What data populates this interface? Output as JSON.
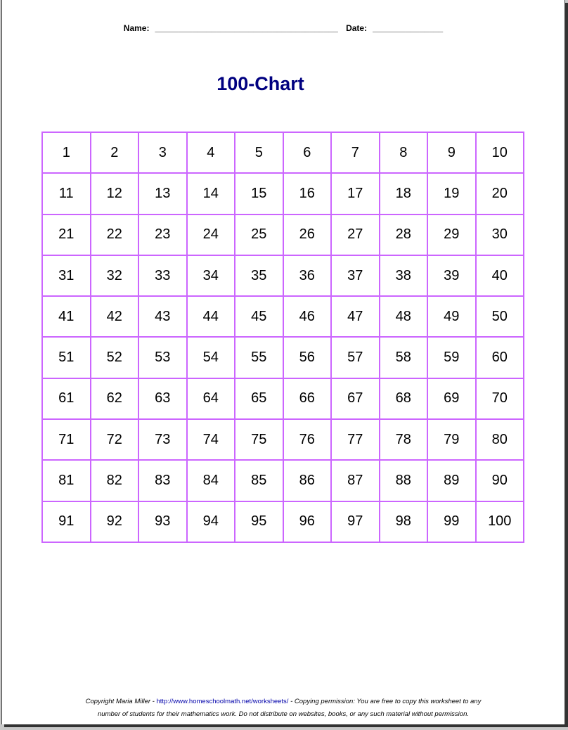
{
  "header": {
    "name_label": "Name:",
    "name_blank": "_______________________________________",
    "date_label": "Date:",
    "date_blank": "_______________"
  },
  "title": "100-Chart",
  "grid_border_color": "#cc66ff",
  "title_color": "#000080",
  "cells": [
    1,
    2,
    3,
    4,
    5,
    6,
    7,
    8,
    9,
    10,
    11,
    12,
    13,
    14,
    15,
    16,
    17,
    18,
    19,
    20,
    21,
    22,
    23,
    24,
    25,
    26,
    27,
    28,
    29,
    30,
    31,
    32,
    33,
    34,
    35,
    36,
    37,
    38,
    39,
    40,
    41,
    42,
    43,
    44,
    45,
    46,
    47,
    48,
    49,
    50,
    51,
    52,
    53,
    54,
    55,
    56,
    57,
    58,
    59,
    60,
    61,
    62,
    63,
    64,
    65,
    66,
    67,
    68,
    69,
    70,
    71,
    72,
    73,
    74,
    75,
    76,
    77,
    78,
    79,
    80,
    81,
    82,
    83,
    84,
    85,
    86,
    87,
    88,
    89,
    90,
    91,
    92,
    93,
    94,
    95,
    96,
    97,
    98,
    99,
    100
  ],
  "footer": {
    "copyright": "Copyright Maria Miller - ",
    "link": "http://www.homeschoolmath.net/worksheets/",
    "line1_rest": " - Copying permission: You are free to copy this worksheet to any",
    "line2": "number of students for their mathematics work. Do not distribute on websites, books, or any such material without permission."
  }
}
